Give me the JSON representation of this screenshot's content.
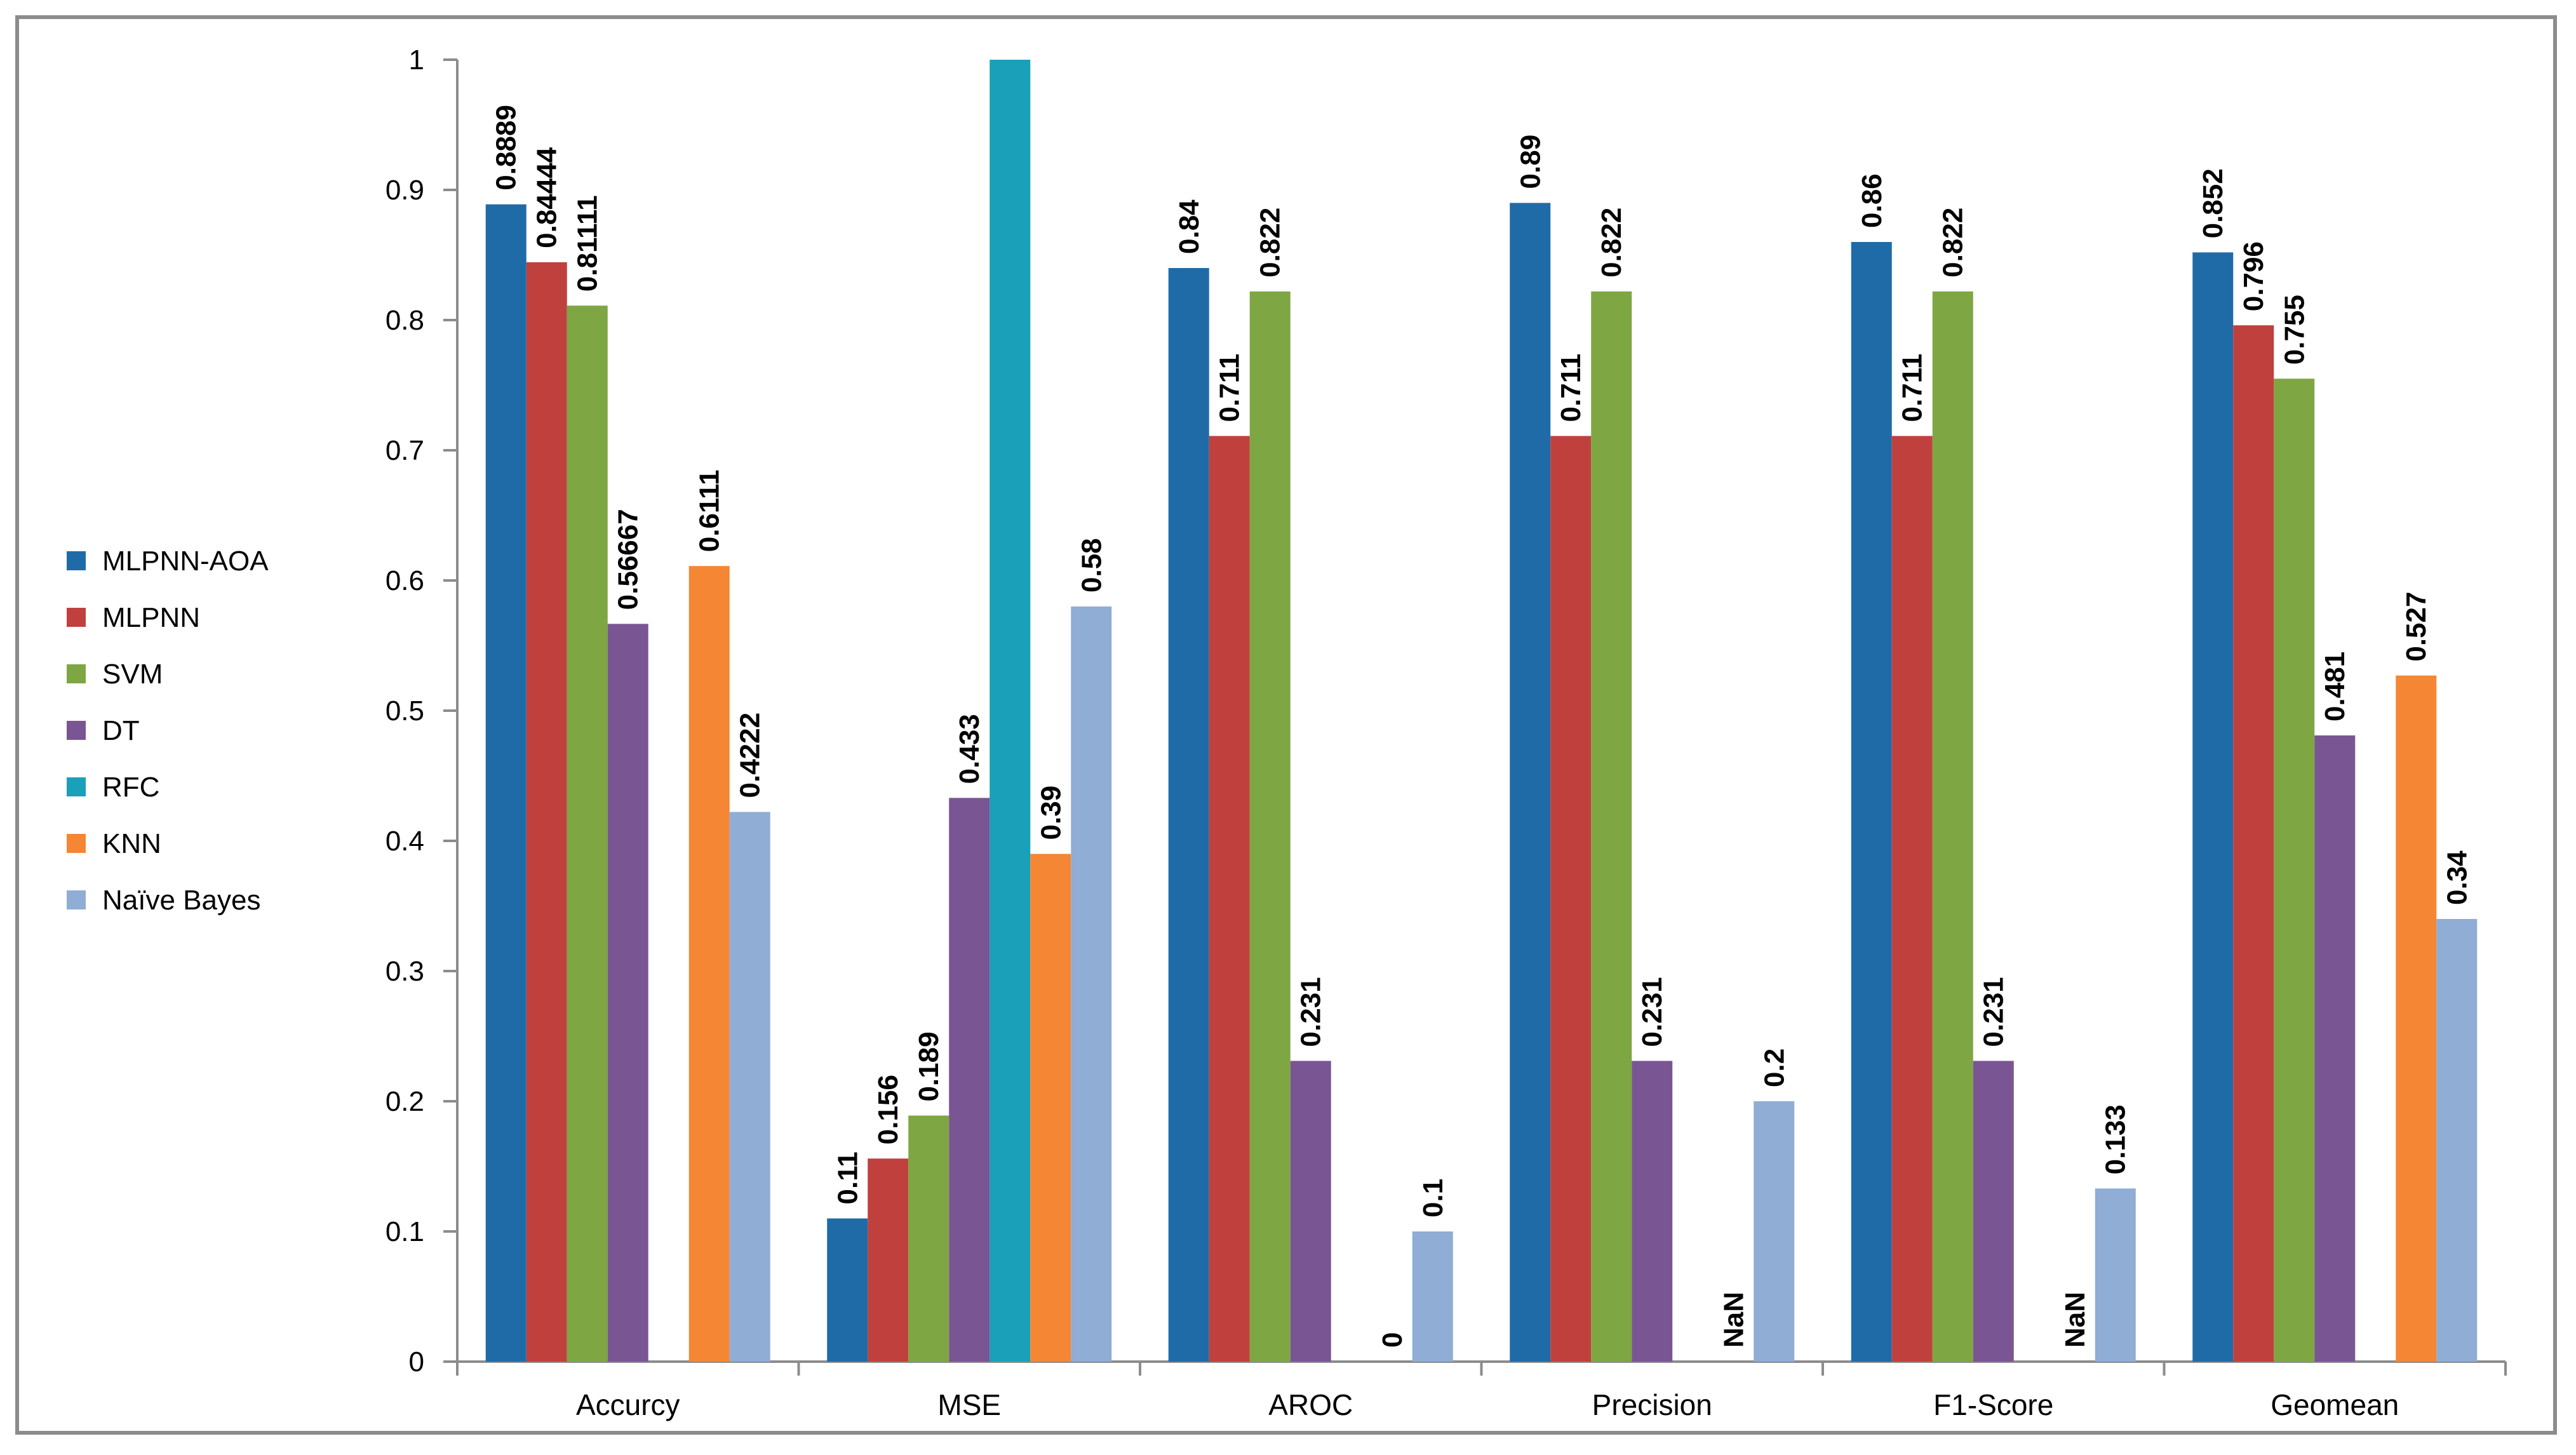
{
  "chart_data": {
    "type": "bar",
    "title": "",
    "xlabel": "",
    "ylabel": "",
    "ylim": [
      0,
      1
    ],
    "yticks": [
      0,
      0.1,
      0.2,
      0.3,
      0.4,
      0.5,
      0.6,
      0.7,
      0.8,
      0.9,
      1
    ],
    "ytick_labels": [
      "0",
      "0.1",
      "0.2",
      "0.3",
      "0.4",
      "0.5",
      "0.6",
      "0.7",
      "0.8",
      "0.9",
      "1"
    ],
    "categories": [
      "Accurcy",
      "MSE",
      "AROC",
      "Precision",
      "F1-Score",
      "Geomean"
    ],
    "legend_position": "left",
    "grid": false,
    "series": [
      {
        "name": "MLPNN-AOA",
        "color": "#1f6ba8",
        "values": [
          0.8889,
          0.11,
          0.84,
          0.89,
          0.86,
          0.852
        ],
        "labels": [
          "0.8889",
          "0.11",
          "0.84",
          "0.89",
          "0.86",
          "0.852"
        ]
      },
      {
        "name": "MLPNN",
        "color": "#c0403e",
        "values": [
          0.84444,
          0.156,
          0.711,
          0.711,
          0.711,
          0.796
        ],
        "labels": [
          "0.84444",
          "0.156",
          "0.711",
          "0.711",
          "0.711",
          "0.796"
        ]
      },
      {
        "name": "SVM",
        "color": "#7ea643",
        "values": [
          0.81111,
          0.189,
          0.822,
          0.822,
          0.822,
          0.755
        ],
        "labels": [
          "0.81111",
          "0.189",
          "0.822",
          "0.822",
          "0.822",
          "0.755"
        ]
      },
      {
        "name": "DT",
        "color": "#7a5593",
        "values": [
          0.56667,
          0.433,
          0.231,
          0.231,
          0.231,
          0.481
        ],
        "labels": [
          "0.56667",
          "0.433",
          "0.231",
          "0.231",
          "0.231",
          "0.481"
        ]
      },
      {
        "name": "RFC",
        "color": "#1aa0b8",
        "values": [
          null,
          1,
          null,
          null,
          null,
          null
        ],
        "labels": [
          null,
          null,
          null,
          null,
          null,
          null
        ]
      },
      {
        "name": "KNN",
        "color": "#f58634",
        "values": [
          0.6111,
          0.39,
          0,
          null,
          null,
          0.527
        ],
        "labels": [
          "0.6111",
          "0.39",
          "0",
          "NaN",
          "NaN",
          "0.527"
        ]
      },
      {
        "name": "Naïve Bayes",
        "color": "#8fadd5",
        "values": [
          0.4222,
          0.58,
          0.1,
          0.2,
          0.133,
          0.34
        ],
        "labels": [
          "0.4222",
          "0.58",
          "0.1",
          "0.2",
          "0.133",
          "0.34"
        ]
      }
    ]
  }
}
